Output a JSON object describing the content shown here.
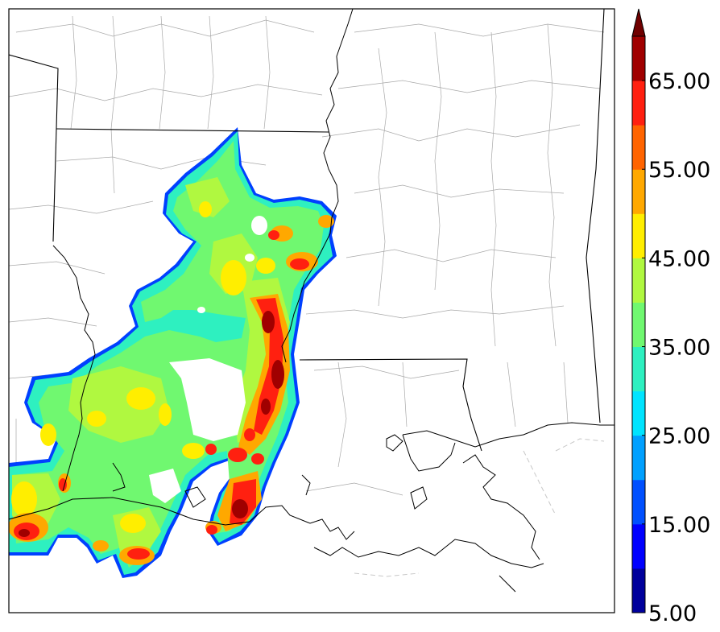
{
  "map": {
    "variable_colors": [
      "#00009c",
      "#0000ff",
      "#0050ff",
      "#00a0ff",
      "#00e4ff",
      "#2ef0c0",
      "#70f870",
      "#b0f840",
      "#ffee00",
      "#ffa800",
      "#ff6400",
      "#ff2010",
      "#a00000",
      "#700000"
    ],
    "legend": {
      "type": "colorbar",
      "orientation": "vertical",
      "min": 5.0,
      "max": 70.0,
      "step": 5.0,
      "extend": "max",
      "tick_labels": [
        "5.00",
        "15.00",
        "25.00",
        "35.00",
        "45.00",
        "55.00",
        "65.00"
      ]
    },
    "basemap": {
      "state_borders_color": "#000000",
      "county_borders_color": "#9a9a9a",
      "coastline_color": "#000000"
    }
  }
}
